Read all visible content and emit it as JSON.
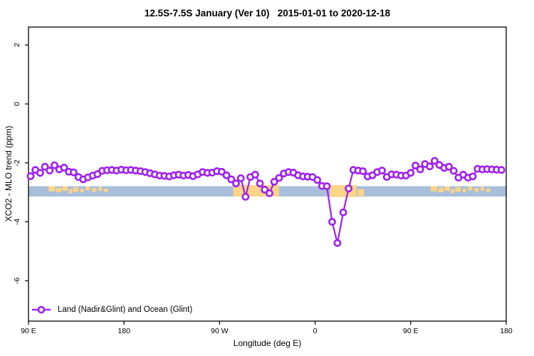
{
  "chart_data": {
    "type": "line",
    "title": "12.5S-7.5S January (Ver 10)   2015-01-01 to 2020-12-18",
    "xlabel": "Longitude (deg E)",
    "ylabel": "XCO2 - MLO trend (ppm)",
    "xlim": [
      90,
      540
    ],
    "ylim": [
      -7.37,
      2.61
    ],
    "grid": false,
    "legend_position": "bottom-left-inside",
    "x_ticks": [
      {
        "deg": 90,
        "label": "90 E"
      },
      {
        "deg": 180,
        "label": "180"
      },
      {
        "deg": 270,
        "label": "90 W"
      },
      {
        "deg": 360,
        "label": "0"
      },
      {
        "deg": 450,
        "label": "90 E"
      },
      {
        "deg": 540,
        "label": "180"
      }
    ],
    "y_ticks": [
      2,
      0,
      -2,
      -4,
      -6
    ],
    "map_band": {
      "description": "world-map latitude strip 12.5S-7.5S: blue ocean with orange land patches",
      "ocean_color": "#A9BEDB",
      "land_color": "#FBD585",
      "y_top": -2.79,
      "y_bottom": -3.14,
      "land_segments": [
        {
          "from": 283,
          "to": 326,
          "top": -0.1,
          "bottom": 1.0
        },
        {
          "from": 374,
          "to": 399,
          "top": -0.1,
          "bottom": 1.05
        },
        {
          "from": 400,
          "to": 406,
          "top": 0.3,
          "bottom": 0.95
        },
        {
          "from": 109,
          "to": 115,
          "top": 0,
          "bottom": 0.5
        },
        {
          "from": 116,
          "to": 121,
          "top": 0.15,
          "bottom": 0.6
        },
        {
          "from": 122,
          "to": 127,
          "top": 0,
          "bottom": 0.45
        },
        {
          "from": 128,
          "to": 131,
          "top": 0.3,
          "bottom": 0.7
        },
        {
          "from": 132,
          "to": 137,
          "top": 0.1,
          "bottom": 0.55
        },
        {
          "from": 139,
          "to": 142,
          "top": 0.25,
          "bottom": 0.6
        },
        {
          "from": 144,
          "to": 148,
          "top": 0,
          "bottom": 0.4
        },
        {
          "from": 150,
          "to": 154,
          "top": 0.2,
          "bottom": 0.55
        },
        {
          "from": 156,
          "to": 159,
          "top": 0.05,
          "bottom": 0.45
        },
        {
          "from": 161,
          "to": 165,
          "top": 0.25,
          "bottom": 0.55
        },
        {
          "from": 469,
          "to": 475,
          "top": 0,
          "bottom": 0.5
        },
        {
          "from": 476,
          "to": 481,
          "top": 0.15,
          "bottom": 0.6
        },
        {
          "from": 482,
          "to": 487,
          "top": 0,
          "bottom": 0.45
        },
        {
          "from": 488,
          "to": 491,
          "top": 0.3,
          "bottom": 0.7
        },
        {
          "from": 492,
          "to": 497,
          "top": 0.1,
          "bottom": 0.55
        },
        {
          "from": 499,
          "to": 502,
          "top": 0.25,
          "bottom": 0.6
        },
        {
          "from": 504,
          "to": 508,
          "top": 0,
          "bottom": 0.4
        },
        {
          "from": 510,
          "to": 514,
          "top": 0.2,
          "bottom": 0.55
        },
        {
          "from": 516,
          "to": 519,
          "top": 0.05,
          "bottom": 0.45
        },
        {
          "from": 521,
          "to": 525,
          "top": 0.25,
          "bottom": 0.55
        }
      ]
    },
    "series": [
      {
        "name": "Land (Nadir&Glint) and Ocean (Glint)",
        "color": "#A020F0",
        "marker": "open-circle",
        "points": [
          [
            92,
            -2.45
          ],
          [
            96.5,
            -2.24
          ],
          [
            101,
            -2.34
          ],
          [
            105.5,
            -2.13
          ],
          [
            110,
            -2.26
          ],
          [
            114.5,
            -2.08
          ],
          [
            119,
            -2.22
          ],
          [
            123.5,
            -2.16
          ],
          [
            128,
            -2.3
          ],
          [
            132.5,
            -2.32
          ],
          [
            137,
            -2.48
          ],
          [
            141.5,
            -2.56
          ],
          [
            146,
            -2.49
          ],
          [
            150.5,
            -2.43
          ],
          [
            155,
            -2.38
          ],
          [
            159.5,
            -2.27
          ],
          [
            164,
            -2.25
          ],
          [
            168.5,
            -2.24
          ],
          [
            173,
            -2.26
          ],
          [
            177.5,
            -2.23
          ],
          [
            182,
            -2.25
          ],
          [
            186.5,
            -2.24
          ],
          [
            191,
            -2.26
          ],
          [
            195.5,
            -2.28
          ],
          [
            200,
            -2.31
          ],
          [
            204.5,
            -2.35
          ],
          [
            209,
            -2.39
          ],
          [
            213.5,
            -2.43
          ],
          [
            218,
            -2.44
          ],
          [
            222.5,
            -2.46
          ],
          [
            227,
            -2.42
          ],
          [
            231.5,
            -2.4
          ],
          [
            236,
            -2.43
          ],
          [
            240.5,
            -2.41
          ],
          [
            245,
            -2.45
          ],
          [
            249.5,
            -2.39
          ],
          [
            254,
            -2.31
          ],
          [
            258.5,
            -2.34
          ],
          [
            263,
            -2.33
          ],
          [
            267.5,
            -2.28
          ],
          [
            272,
            -2.3
          ],
          [
            276.5,
            -2.42
          ],
          [
            281,
            -2.56
          ],
          [
            285.5,
            -2.7
          ],
          [
            290,
            -2.52
          ],
          [
            294.5,
            -3.15
          ],
          [
            299,
            -2.48
          ],
          [
            303.5,
            -2.4
          ],
          [
            308,
            -2.7
          ],
          [
            312.5,
            -2.91
          ],
          [
            317,
            -3.03
          ],
          [
            321.5,
            -2.64
          ],
          [
            326,
            -2.51
          ],
          [
            330.5,
            -2.36
          ],
          [
            335,
            -2.31
          ],
          [
            339.5,
            -2.33
          ],
          [
            344,
            -2.42
          ],
          [
            348.5,
            -2.46
          ],
          [
            353,
            -2.47
          ],
          [
            357.5,
            -2.48
          ],
          [
            362,
            -2.58
          ],
          [
            366.5,
            -2.78
          ],
          [
            371,
            -2.79
          ],
          [
            376,
            -4.0
          ],
          [
            381,
            -4.72
          ],
          [
            386.5,
            -3.68
          ],
          [
            391.5,
            -2.87
          ],
          [
            396,
            -2.24
          ],
          [
            400.5,
            -2.26
          ],
          [
            405,
            -2.28
          ],
          [
            409.5,
            -2.46
          ],
          [
            414,
            -2.42
          ],
          [
            418.5,
            -2.31
          ],
          [
            423,
            -2.26
          ],
          [
            427.5,
            -2.48
          ],
          [
            432,
            -2.39
          ],
          [
            436.5,
            -2.4
          ],
          [
            441,
            -2.43
          ],
          [
            445.5,
            -2.43
          ],
          [
            450,
            -2.34
          ],
          [
            454.5,
            -2.09
          ],
          [
            459,
            -2.22
          ],
          [
            463.5,
            -2.04
          ],
          [
            468,
            -2.12
          ],
          [
            472.5,
            -1.93
          ],
          [
            477,
            -2.07
          ],
          [
            481.5,
            -2.17
          ],
          [
            486,
            -2.13
          ],
          [
            490.5,
            -2.27
          ],
          [
            495,
            -2.5
          ],
          [
            499.5,
            -2.4
          ],
          [
            504,
            -2.5
          ],
          [
            508.5,
            -2.46
          ],
          [
            513,
            -2.2
          ],
          [
            517.5,
            -2.22
          ],
          [
            522,
            -2.21
          ],
          [
            526.5,
            -2.22
          ],
          [
            531,
            -2.23
          ],
          [
            535.5,
            -2.24
          ]
        ]
      }
    ],
    "legend": {
      "label": "Land (Nadir&Glint) and Ocean (Glint)"
    }
  }
}
